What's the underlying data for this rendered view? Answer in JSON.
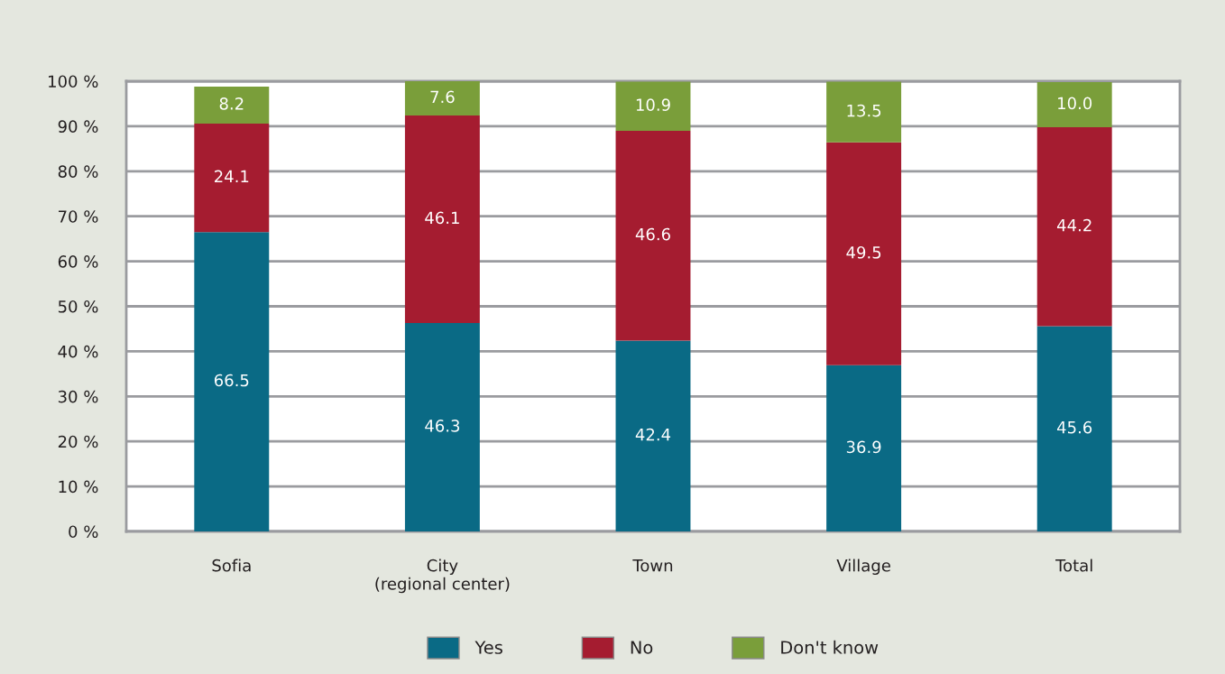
{
  "chart_data": {
    "type": "bar",
    "stacked": true,
    "categories": [
      "Sofia",
      "City\n(regional center)",
      "Town",
      "Village",
      "Total"
    ],
    "series": [
      {
        "name": "Yes",
        "color": "#0a6a85",
        "values": [
          66.5,
          46.3,
          42.4,
          36.9,
          45.6
        ],
        "value_labels": [
          "66.5",
          "46.3",
          "42.4",
          "36.9",
          "45.6"
        ]
      },
      {
        "name": "No",
        "color": "#a51c30",
        "values": [
          24.1,
          46.1,
          46.6,
          49.5,
          44.2
        ],
        "value_labels": [
          "24.1",
          "46.1",
          "46.6",
          "49.5",
          "44.2"
        ]
      },
      {
        "name": "Don't know",
        "color": "#7a9e3a",
        "values": [
          8.2,
          7.6,
          10.9,
          13.5,
          10.0
        ],
        "value_labels": [
          "8.2",
          "7.6",
          "10.9",
          "13.5",
          "10.0"
        ]
      }
    ],
    "ylim": [
      0,
      100
    ],
    "yticks": [
      {
        "value": 0,
        "label": "0 %"
      },
      {
        "value": 10,
        "label": "10 %"
      },
      {
        "value": 20,
        "label": "20 %"
      },
      {
        "value": 30,
        "label": "30 %"
      },
      {
        "value": 40,
        "label": "40 %"
      },
      {
        "value": 50,
        "label": "50 %"
      },
      {
        "value": 60,
        "label": "60 %"
      },
      {
        "value": 70,
        "label": "70 %"
      },
      {
        "value": 80,
        "label": "80 %"
      },
      {
        "value": 90,
        "label": "90 %"
      },
      {
        "value": 100,
        "label": "100 %"
      }
    ],
    "grid": "y",
    "legend": "bottom"
  }
}
